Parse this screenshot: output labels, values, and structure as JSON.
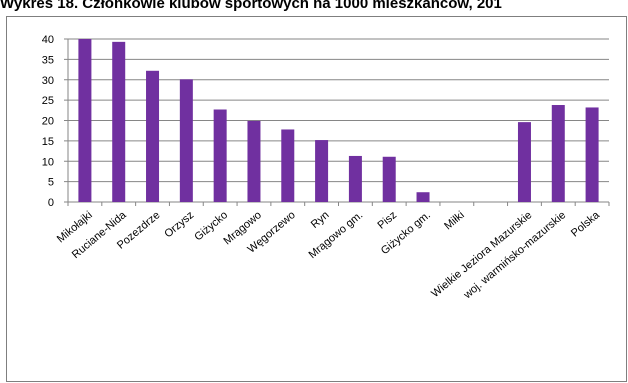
{
  "chart_data": {
    "type": "bar",
    "title": "Wykres 18. Członkowie klubów sportowych na 1000 mieszkańców, 201",
    "categories": [
      "Mikołajki",
      "Ruciane-Nida",
      "Pozezdrze",
      "Orzysz",
      "Giżycko",
      "Mrągowo",
      "Węgorzewo",
      "Ryn",
      "Mrągowo gm.",
      "Pisz",
      "Giżycko gm.",
      "Miłki",
      "",
      "Wielkie Jeziora Mazurskie",
      "woj. warmińsko-mazurskie",
      "Polska"
    ],
    "values": [
      40.0,
      39.3,
      32.2,
      30.1,
      22.7,
      19.9,
      17.8,
      15.2,
      11.3,
      11.1,
      2.4,
      0,
      null,
      19.6,
      23.8,
      23.2
    ],
    "xlabel": "",
    "ylabel": "",
    "ylim": [
      0,
      40
    ],
    "yticks": [
      "0",
      "5",
      "10",
      "15",
      "20",
      "25",
      "30",
      "35",
      "40"
    ],
    "grid": true,
    "legend": "none",
    "bar_color": "#7030a0",
    "grid_color": "#868686"
  }
}
